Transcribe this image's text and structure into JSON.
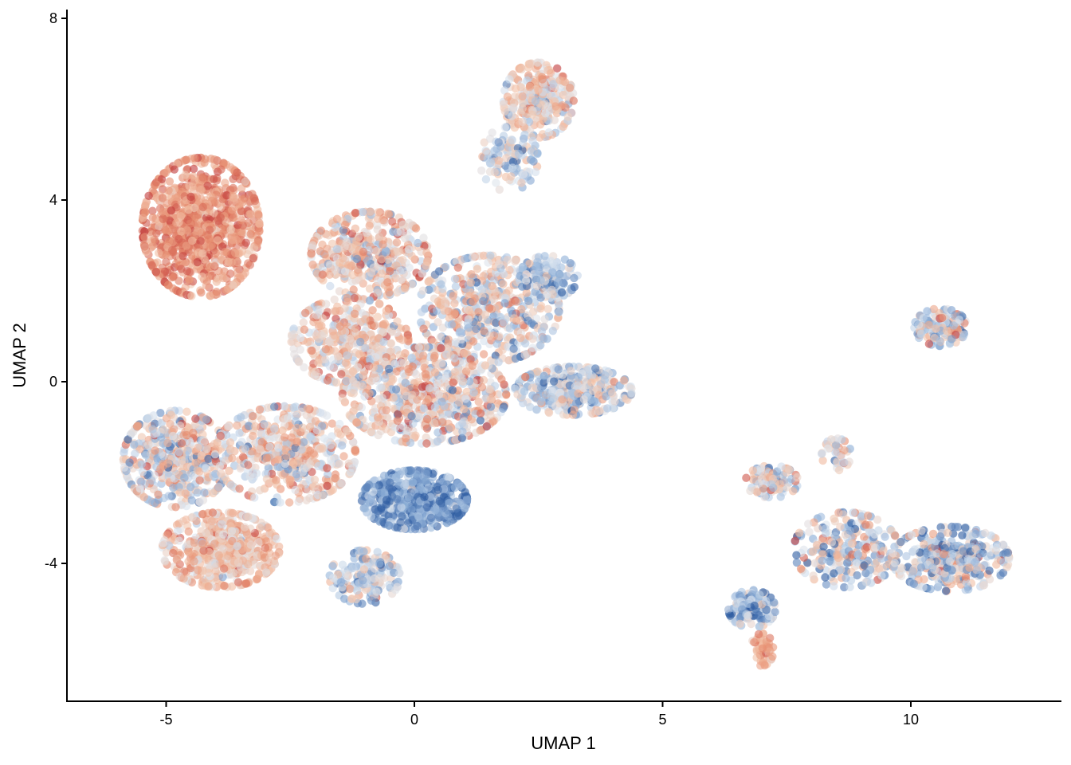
{
  "chart_data": {
    "type": "scatter",
    "title": "",
    "xlabel": "UMAP 1",
    "ylabel": "UMAP 2",
    "xlim": [
      -7,
      13
    ],
    "ylim": [
      -7,
      8.2
    ],
    "xticks": [
      -5,
      0,
      5,
      10
    ],
    "yticks": [
      -4,
      0,
      4,
      8
    ],
    "xtick_labels": [
      "-5",
      "0",
      "5",
      "10"
    ],
    "ytick_labels": [
      "-4",
      "0",
      "4",
      "8"
    ],
    "grid": false,
    "legend": "none",
    "point_alpha": 0.6,
    "color_scale": [
      "#2c5aa0",
      "#8fb0d8",
      "#dde6f0",
      "#f2c2a8",
      "#e68a6c",
      "#c23a3a"
    ],
    "clusters": [
      {
        "cx": -4.3,
        "cy": 3.4,
        "sx": 1.0,
        "sy": 1.3,
        "n": 900,
        "color_mean": 0.78,
        "color_sd": 0.12
      },
      {
        "cx": 2.5,
        "cy": 6.2,
        "sx": 0.6,
        "sy": 0.7,
        "n": 300,
        "color_mean": 0.55,
        "color_sd": 0.18
      },
      {
        "cx": 1.9,
        "cy": 4.9,
        "sx": 0.5,
        "sy": 0.6,
        "n": 120,
        "color_mean": 0.35,
        "color_sd": 0.18
      },
      {
        "cx": -0.9,
        "cy": 2.8,
        "sx": 1.0,
        "sy": 0.8,
        "n": 450,
        "color_mean": 0.58,
        "color_sd": 0.2
      },
      {
        "cx": 1.5,
        "cy": 1.6,
        "sx": 1.2,
        "sy": 1.0,
        "n": 500,
        "color_mean": 0.45,
        "color_sd": 0.22
      },
      {
        "cx": 2.7,
        "cy": 2.3,
        "sx": 0.5,
        "sy": 0.4,
        "n": 130,
        "color_mean": 0.3,
        "color_sd": 0.15
      },
      {
        "cx": -1.3,
        "cy": 0.9,
        "sx": 1.0,
        "sy": 0.8,
        "n": 400,
        "color_mean": 0.58,
        "color_sd": 0.18
      },
      {
        "cx": 0.2,
        "cy": -0.3,
        "sx": 1.4,
        "sy": 0.9,
        "n": 650,
        "color_mean": 0.52,
        "color_sd": 0.22
      },
      {
        "cx": 3.2,
        "cy": -0.2,
        "sx": 1.0,
        "sy": 0.45,
        "n": 350,
        "color_mean": 0.35,
        "color_sd": 0.2
      },
      {
        "cx": 0.0,
        "cy": -2.6,
        "sx": 0.9,
        "sy": 0.55,
        "n": 550,
        "color_mean": 0.14,
        "color_sd": 0.12
      },
      {
        "cx": -4.8,
        "cy": -1.7,
        "sx": 0.9,
        "sy": 0.9,
        "n": 450,
        "color_mean": 0.47,
        "color_sd": 0.22
      },
      {
        "cx": -2.6,
        "cy": -1.6,
        "sx": 1.2,
        "sy": 0.9,
        "n": 500,
        "color_mean": 0.52,
        "color_sd": 0.22
      },
      {
        "cx": -3.9,
        "cy": -3.7,
        "sx": 1.0,
        "sy": 0.7,
        "n": 500,
        "color_mean": 0.6,
        "color_sd": 0.15
      },
      {
        "cx": -1.0,
        "cy": -4.3,
        "sx": 0.6,
        "sy": 0.5,
        "n": 180,
        "color_mean": 0.32,
        "color_sd": 0.2
      },
      {
        "cx": 10.6,
        "cy": 1.2,
        "sx": 0.45,
        "sy": 0.35,
        "n": 140,
        "color_mean": 0.4,
        "color_sd": 0.25
      },
      {
        "cx": 7.2,
        "cy": -2.2,
        "sx": 0.45,
        "sy": 0.3,
        "n": 120,
        "color_mean": 0.45,
        "color_sd": 0.22
      },
      {
        "cx": 8.7,
        "cy": -3.7,
        "sx": 0.9,
        "sy": 0.7,
        "n": 260,
        "color_mean": 0.4,
        "color_sd": 0.25
      },
      {
        "cx": 10.8,
        "cy": -3.9,
        "sx": 1.0,
        "sy": 0.6,
        "n": 360,
        "color_mean": 0.38,
        "color_sd": 0.25
      },
      {
        "cx": 6.8,
        "cy": -5.0,
        "sx": 0.4,
        "sy": 0.35,
        "n": 160,
        "color_mean": 0.22,
        "color_sd": 0.2
      },
      {
        "cx": 7.0,
        "cy": -5.9,
        "sx": 0.2,
        "sy": 0.3,
        "n": 50,
        "color_mean": 0.68,
        "color_sd": 0.12
      },
      {
        "cx": 8.5,
        "cy": -1.6,
        "sx": 0.25,
        "sy": 0.3,
        "n": 40,
        "color_mean": 0.5,
        "color_sd": 0.2
      }
    ]
  }
}
